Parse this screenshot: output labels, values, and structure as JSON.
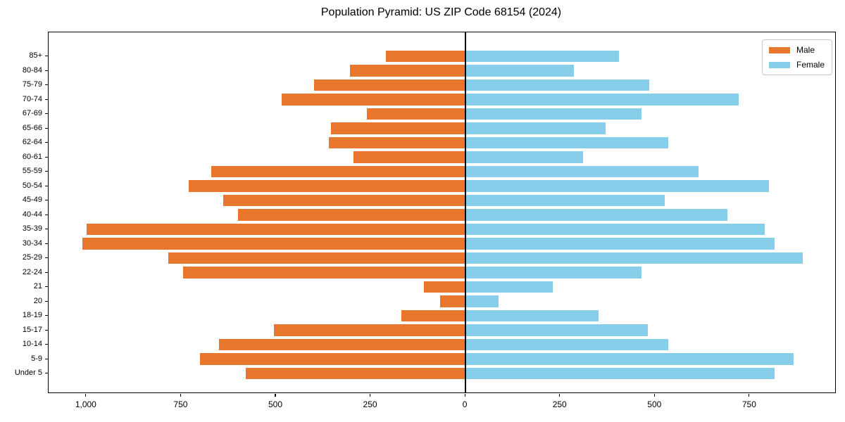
{
  "title": "Population Pyramid: US ZIP Code 68154 (2024)",
  "legend": {
    "male_label": "Male",
    "female_label": "Female"
  },
  "colors": {
    "male": "#e8762d",
    "female": "#87ceeb",
    "axis": "#000000",
    "legend_border": "#c9c9c9",
    "background": "#ffffff"
  },
  "chart_data": {
    "type": "bar",
    "subtype": "population-pyramid",
    "title": "Population Pyramid: US ZIP Code 68154 (2024)",
    "orientation": "horizontal",
    "grid": false,
    "zero_line": true,
    "legend_position": "upper-right",
    "xlim": [
      -1100,
      975
    ],
    "categories_top_to_bottom": [
      "85+",
      "80-84",
      "75-79",
      "70-74",
      "67-69",
      "65-66",
      "62-64",
      "60-61",
      "55-59",
      "50-54",
      "45-49",
      "40-44",
      "35-39",
      "30-34",
      "25-29",
      "22-24",
      "21",
      "20",
      "18-19",
      "15-17",
      "10-14",
      "5-9",
      "Under 5"
    ],
    "series": [
      {
        "name": "Male",
        "side": "left",
        "color": "#e8762d",
        "values": [
          210,
          305,
          400,
          485,
          260,
          355,
          360,
          295,
          670,
          730,
          640,
          600,
          1000,
          1010,
          785,
          745,
          110,
          68,
          170,
          505,
          650,
          700,
          580
        ]
      },
      {
        "name": "Female",
        "side": "right",
        "color": "#87ceeb",
        "values": [
          405,
          285,
          485,
          720,
          465,
          370,
          535,
          310,
          615,
          800,
          525,
          690,
          790,
          815,
          890,
          465,
          230,
          87,
          350,
          480,
          535,
          865,
          815
        ]
      }
    ],
    "x_ticks": [
      {
        "value": -1000,
        "label": "1,000"
      },
      {
        "value": -750,
        "label": "750"
      },
      {
        "value": -500,
        "label": "500"
      },
      {
        "value": -250,
        "label": "250"
      },
      {
        "value": 0,
        "label": "0"
      },
      {
        "value": 250,
        "label": "250"
      },
      {
        "value": 500,
        "label": "500"
      },
      {
        "value": 750,
        "label": "750"
      }
    ]
  }
}
